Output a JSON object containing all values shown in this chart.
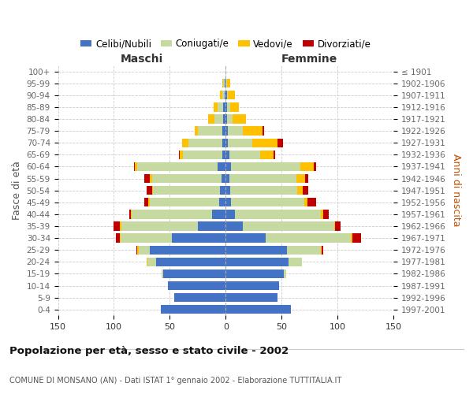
{
  "age_groups": [
    "0-4",
    "5-9",
    "10-14",
    "15-19",
    "20-24",
    "25-29",
    "30-34",
    "35-39",
    "40-44",
    "45-49",
    "50-54",
    "55-59",
    "60-64",
    "65-69",
    "70-74",
    "75-79",
    "80-84",
    "85-89",
    "90-94",
    "95-99",
    "100+"
  ],
  "birth_years": [
    "1997-2001",
    "1992-1996",
    "1987-1991",
    "1982-1986",
    "1977-1981",
    "1972-1976",
    "1967-1971",
    "1962-1966",
    "1957-1961",
    "1952-1956",
    "1947-1951",
    "1942-1946",
    "1937-1941",
    "1932-1936",
    "1927-1931",
    "1922-1926",
    "1917-1921",
    "1912-1916",
    "1907-1911",
    "1902-1906",
    "≤ 1901"
  ],
  "males_celibi": [
    58,
    46,
    52,
    56,
    62,
    68,
    48,
    25,
    12,
    6,
    5,
    4,
    7,
    3,
    3,
    3,
    2,
    2,
    1,
    1,
    0
  ],
  "males_coniugati": [
    0,
    0,
    0,
    1,
    8,
    10,
    46,
    68,
    72,
    62,
    60,
    62,
    72,
    35,
    30,
    22,
    8,
    5,
    2,
    1,
    0
  ],
  "males_vedovi": [
    0,
    0,
    0,
    0,
    1,
    1,
    1,
    2,
    1,
    1,
    1,
    2,
    2,
    3,
    6,
    3,
    6,
    4,
    2,
    1,
    0
  ],
  "males_divorziati": [
    0,
    0,
    0,
    0,
    0,
    1,
    3,
    5,
    1,
    4,
    5,
    5,
    1,
    1,
    0,
    0,
    0,
    0,
    0,
    0,
    0
  ],
  "females_nubili": [
    58,
    46,
    48,
    52,
    56,
    55,
    36,
    15,
    8,
    5,
    4,
    3,
    5,
    3,
    2,
    2,
    1,
    1,
    1,
    0,
    0
  ],
  "females_coniugate": [
    0,
    0,
    0,
    2,
    12,
    30,
    76,
    82,
    77,
    65,
    60,
    60,
    62,
    28,
    22,
    13,
    5,
    3,
    1,
    1,
    0
  ],
  "females_vedove": [
    0,
    0,
    0,
    0,
    0,
    1,
    1,
    1,
    2,
    3,
    5,
    8,
    12,
    12,
    22,
    18,
    12,
    8,
    6,
    3,
    0
  ],
  "females_divorziate": [
    0,
    0,
    0,
    0,
    0,
    1,
    8,
    5,
    5,
    8,
    5,
    3,
    2,
    1,
    5,
    1,
    0,
    0,
    0,
    0,
    0
  ],
  "color_celibi": "#4472c4",
  "color_coniugati": "#c5d9a0",
  "color_vedovi": "#ffc000",
  "color_divorziati": "#c00000",
  "xlim": 150,
  "title": "Popolazione per età, sesso e stato civile - 2002",
  "subtitle": "COMUNE DI MONSANO (AN) - Dati ISTAT 1° gennaio 2002 - Elaborazione TUTTITALIA.IT",
  "ylabel_left": "Fasce di età",
  "ylabel_right": "Anni di nascita",
  "xlabel_left": "Maschi",
  "xlabel_right": "Femmine",
  "bg_color": "#ffffff",
  "grid_color": "#cccccc"
}
